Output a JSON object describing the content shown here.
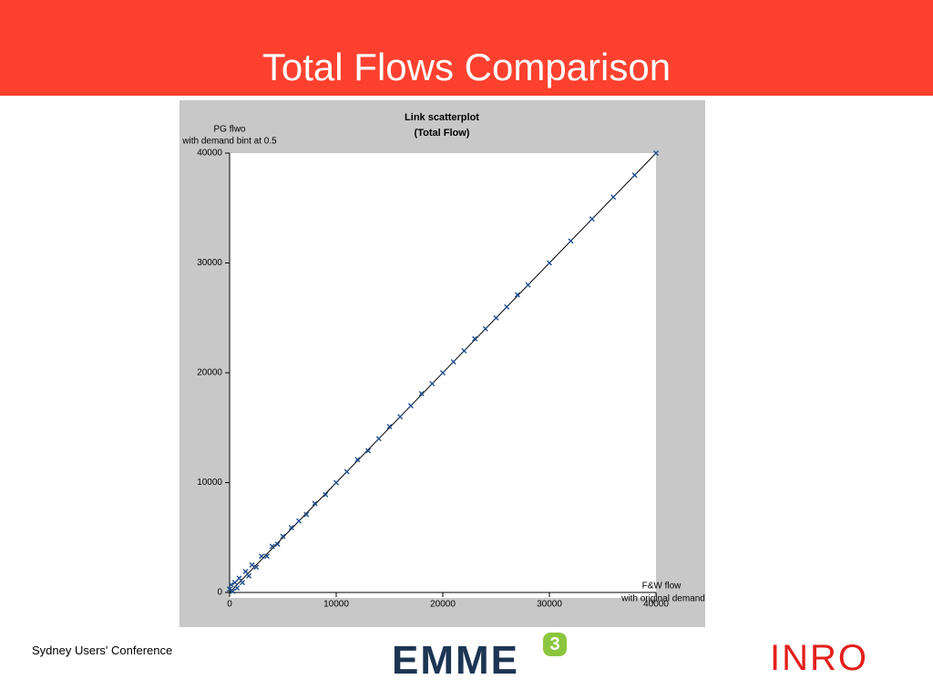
{
  "slide_title": "Total Flows Comparison",
  "footer": "Sydney Users' Conference",
  "logo_left": {
    "text": "EMME",
    "badge": "3"
  },
  "logo_right": "INRO",
  "chart_data": {
    "type": "scatter",
    "title": [
      "Link scatterplot",
      "(Total Flow)"
    ],
    "y_label": [
      "PG flwo",
      "with demand bint at 0.5"
    ],
    "x_label": [
      "F&W flow",
      "with original demand"
    ],
    "color": "#1f4e8c",
    "x": [
      0,
      150,
      300,
      500,
      700,
      900,
      1200,
      1500,
      1800,
      2100,
      2500,
      3000,
      3500,
      4000,
      4500,
      5000,
      5800,
      6500,
      7200,
      8000,
      9000,
      10000,
      11000,
      12000,
      13000,
      14000,
      15000,
      16000,
      17000,
      18000,
      19000,
      20000,
      21000,
      22000,
      23000,
      24000,
      25000,
      26000,
      27000,
      28000,
      30000,
      32000,
      34000,
      36000,
      38000,
      40000
    ],
    "values": [
      300,
      700,
      100,
      900,
      400,
      1300,
      900,
      1900,
      1500,
      2500,
      2300,
      3300,
      3300,
      4200,
      4400,
      5100,
      5900,
      6500,
      7100,
      8100,
      8900,
      10000,
      11000,
      12100,
      12900,
      14000,
      15100,
      16000,
      17000,
      18100,
      19000,
      20000,
      21000,
      22000,
      23100,
      24000,
      25000,
      26000,
      27100,
      28000,
      30000,
      32000,
      34000,
      36000,
      38000,
      40000
    ],
    "xlim": [
      0,
      40000
    ],
    "ylim": [
      0,
      40000
    ],
    "xticks": [
      0,
      10000,
      20000,
      30000,
      40000
    ],
    "yticks": [
      0,
      10000,
      20000,
      30000,
      40000
    ]
  }
}
